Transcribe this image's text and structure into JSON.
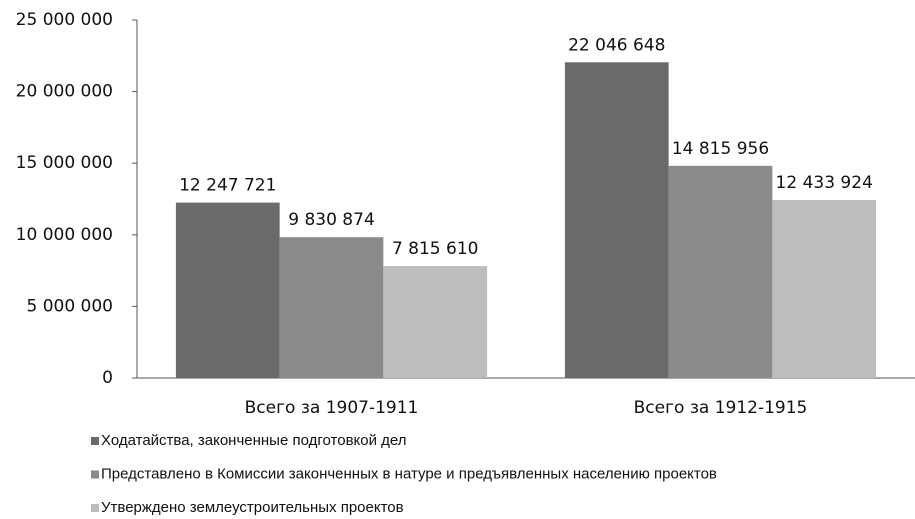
{
  "chart_data": {
    "type": "bar",
    "categories": [
      "Всего за 1907-1911",
      "Всего за 1912-1915"
    ],
    "series": [
      {
        "name": "Ходатайства, законченные подготовкой дел",
        "color": "#6a6a6a",
        "values": [
          12247721,
          22046648
        ],
        "value_labels": [
          "12 247 721",
          "22 046 648"
        ]
      },
      {
        "name": "Представлено в Комиссии законченных в натуре и предъявленных населению проектов",
        "color": "#8a8a8a",
        "values": [
          9830874,
          14815956
        ],
        "value_labels": [
          "9 830 874",
          "14 815 956"
        ]
      },
      {
        "name": "Утверждено землеустроительных проектов",
        "color": "#bdbdbd",
        "values": [
          7815610,
          12433924
        ],
        "value_labels": [
          "7 815 610",
          "12 433 924"
        ]
      }
    ],
    "ylim": [
      0,
      25000000
    ],
    "yticks": [
      0,
      {
        "value": 5000000,
        "label": "5 000 000"
      },
      {
        "value": 10000000,
        "label": "10 000 000"
      },
      {
        "value": 15000000,
        "label": "15 000 000"
      },
      {
        "value": 20000000,
        "label": "20 000 000"
      },
      {
        "value": 25000000,
        "label": "25 000 000"
      }
    ],
    "legend": "bottom",
    "grid": false
  }
}
